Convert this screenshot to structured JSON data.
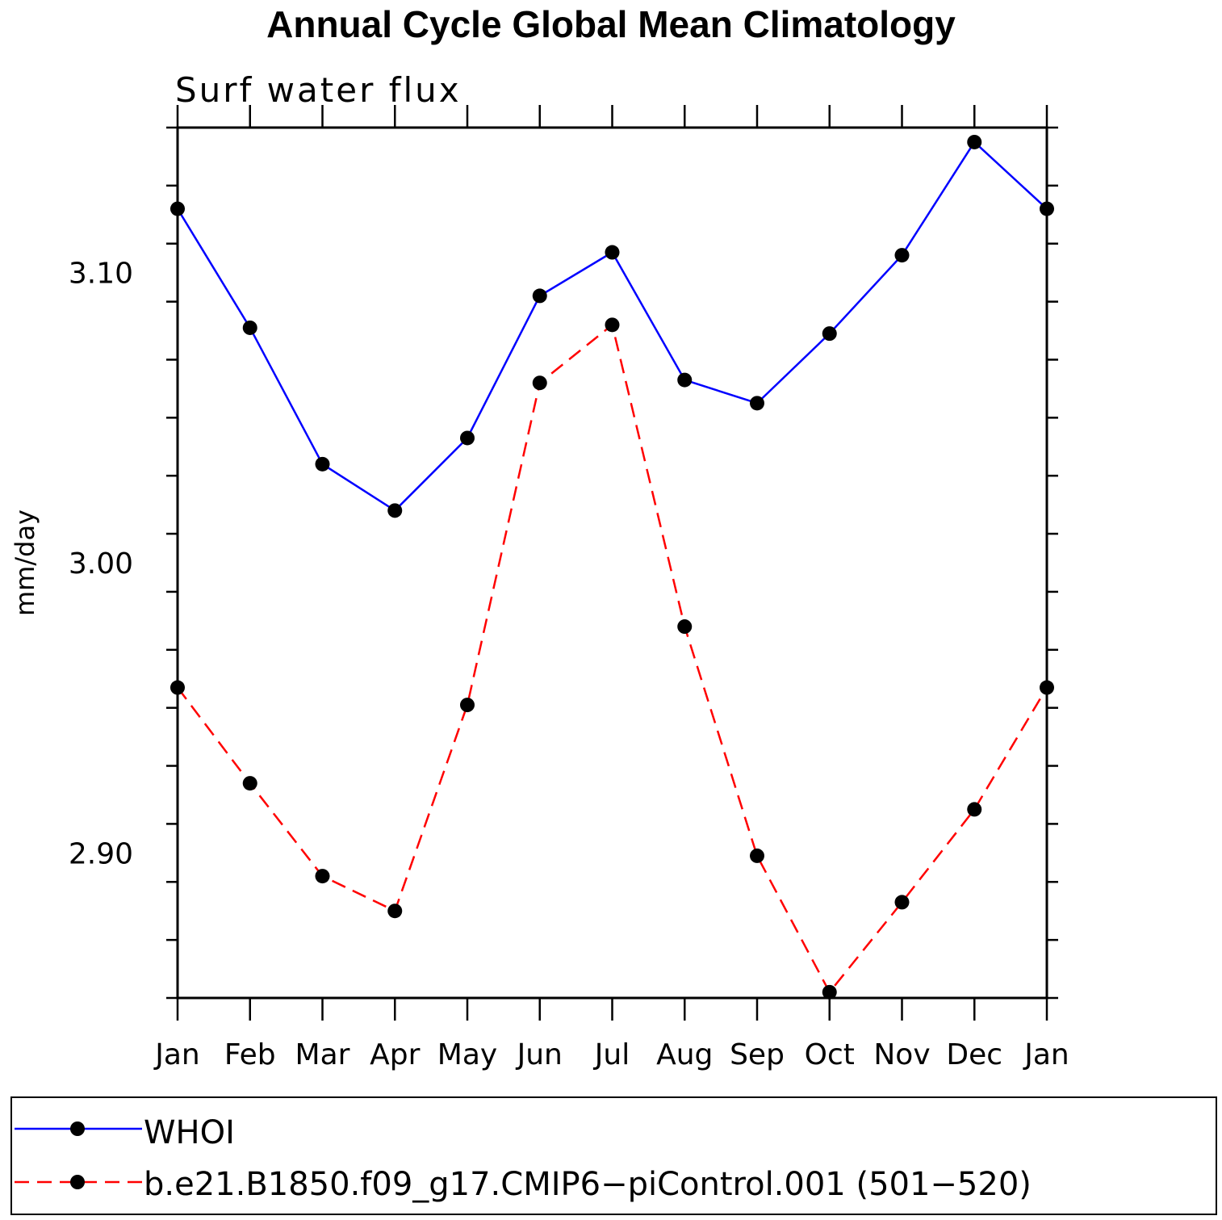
{
  "chart_data": {
    "type": "line",
    "title": "Annual Cycle Global Mean Climatology",
    "subtitle": "Surf water flux",
    "xlabel": "",
    "ylabel": "mm/day",
    "categories": [
      "Jan",
      "Feb",
      "Mar",
      "Apr",
      "May",
      "Jun",
      "Jul",
      "Aug",
      "Sep",
      "Oct",
      "Nov",
      "Dec",
      "Jan"
    ],
    "ylim": [
      2.85,
      3.15
    ],
    "yticks": [
      2.9,
      3.0,
      3.1
    ],
    "ytick_labels": [
      "2.90",
      "3.00",
      "3.10"
    ],
    "series": [
      {
        "name": "WHOI",
        "color": "#0000ff",
        "dash": "solid",
        "marker": "filled-circle",
        "values": [
          3.122,
          3.081,
          3.034,
          3.018,
          3.043,
          3.092,
          3.107,
          3.063,
          3.055,
          3.079,
          3.106,
          3.145,
          3.122
        ]
      },
      {
        "name": "b.e21.B1850.f09_g17.CMIP6−piControl.001 (501−520)",
        "color": "#ff0000",
        "dash": "dashed",
        "marker": "filled-circle",
        "values": [
          2.957,
          2.924,
          2.892,
          2.88,
          2.951,
          3.062,
          3.082,
          2.978,
          2.899,
          2.852,
          2.883,
          2.915,
          2.957
        ]
      }
    ]
  }
}
